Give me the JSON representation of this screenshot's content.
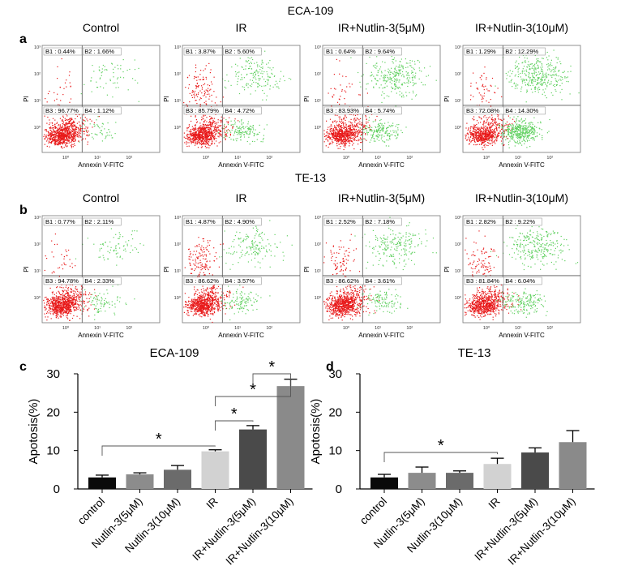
{
  "figure": {
    "top_title": "ECA-109",
    "mid_title": "TE-13",
    "panel_letters": [
      "a",
      "b",
      "c",
      "d"
    ]
  },
  "chart_data": [
    {
      "type": "scatter",
      "panel": "a",
      "cell_line": "ECA-109",
      "xlabel": "Annexin V-FITC",
      "ylabel": "PI",
      "plots": [
        {
          "title": "Control",
          "quadrants": {
            "B1": "0.44%",
            "B2": "1.66%",
            "B3": "96.77%",
            "B4": "1.12%"
          }
        },
        {
          "title": "IR",
          "quadrants": {
            "B1": "3.87%",
            "B2": "5.60%",
            "B3": "85.79%",
            "B4": "4.72%"
          }
        },
        {
          "title": "IR+Nutlin-3(5μM)",
          "quadrants": {
            "B1": "0.64%",
            "B2": "9.64%",
            "B3": "83.93%",
            "B4": "5.74%"
          }
        },
        {
          "title": "IR+Nutlin-3(10μM)",
          "quadrants": {
            "B1": "1.29%",
            "B2": "12.29%",
            "B3": "72.08%",
            "B4": "14.30%"
          }
        }
      ]
    },
    {
      "type": "scatter",
      "panel": "b",
      "cell_line": "TE-13",
      "xlabel": "Annexin V-FITC",
      "ylabel": "PI",
      "plots": [
        {
          "title": "Control",
          "quadrants": {
            "B1": "0.77%",
            "B2": "2.11%",
            "B3": "94.78%",
            "B4": "2.33%"
          }
        },
        {
          "title": "IR",
          "quadrants": {
            "B1": "4.87%",
            "B2": "4.90%",
            "B3": "86.62%",
            "B4": "3.57%"
          }
        },
        {
          "title": "IR+Nutlin-3(5μM)",
          "quadrants": {
            "B1": "2.52%",
            "B2": "7.18%",
            "B3": "86.62%",
            "B4": "3.61%"
          }
        },
        {
          "title": "IR+Nutlin-3(10μM)",
          "quadrants": {
            "B1": "2.82%",
            "B2": "9.22%",
            "B3": "81.84%",
            "B4": "6.04%"
          }
        }
      ]
    },
    {
      "type": "bar",
      "panel": "c",
      "title": "ECA-109",
      "ylabel": "Apotosis(%)",
      "ylim": [
        0,
        30
      ],
      "yticks": [
        "0",
        "10",
        "20",
        "30"
      ],
      "categories": [
        "control",
        "Nutlin-3(5μM)",
        "Nutlin-3(10μM)",
        "IR",
        "IR+Nutlin-3(5μM)",
        "IR+Nutlin-3(10μM)"
      ],
      "values": [
        3.0,
        3.8,
        5.0,
        9.8,
        15.5,
        26.8
      ],
      "errors": [
        0.6,
        0.4,
        1.1,
        0.4,
        1.0,
        1.8
      ],
      "colors": [
        "#0a0a0a",
        "#8c8c8c",
        "#6b6b6b",
        "#d2d2d2",
        "#4a4a4a",
        "#8a8a8a"
      ],
      "significance": [
        {
          "from": "control",
          "to": "IR",
          "label": "*"
        },
        {
          "from": "IR",
          "to": "IR+Nutlin-3(5μM)",
          "label": "*"
        },
        {
          "from": "IR",
          "to": "IR+Nutlin-3(10μM)",
          "label": "*"
        },
        {
          "from": "IR+Nutlin-3(5μM)",
          "to": "IR+Nutlin-3(10μM)",
          "label": "*"
        }
      ]
    },
    {
      "type": "bar",
      "panel": "d",
      "title": "TE-13",
      "ylabel": "Apotosis(%)",
      "ylim": [
        0,
        30
      ],
      "yticks": [
        "0",
        "10",
        "20",
        "30"
      ],
      "categories": [
        "control",
        "Nutlin-3(5μM)",
        "Nutlin-3(10μM)",
        "IR",
        "IR+Nutlin-3(5μM)",
        "IR+Nutlin-3(10μM)"
      ],
      "values": [
        3.0,
        4.2,
        4.2,
        6.5,
        9.5,
        12.2
      ],
      "errors": [
        0.8,
        1.5,
        0.5,
        1.5,
        1.2,
        3.0
      ],
      "colors": [
        "#0a0a0a",
        "#8c8c8c",
        "#6b6b6b",
        "#d2d2d2",
        "#4a4a4a",
        "#8a8a8a"
      ],
      "significance": [
        {
          "from": "control",
          "to": "IR",
          "label": "*"
        }
      ]
    }
  ]
}
